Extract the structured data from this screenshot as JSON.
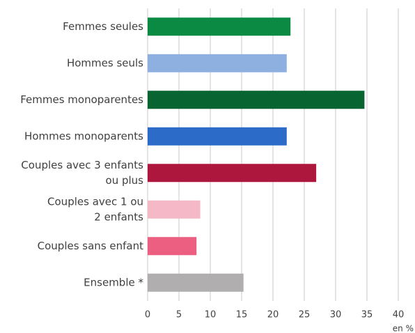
{
  "chart_data": {
    "type": "bar",
    "orientation": "horizontal",
    "categories": [
      [
        "Femmes seules"
      ],
      [
        "Hommes seuls"
      ],
      [
        "Femmes monoparentes"
      ],
      [
        "Hommes monoparents"
      ],
      [
        "Couples avec 3 enfants",
        "ou plus"
      ],
      [
        "Couples avec 1 ou",
        "2 enfants"
      ],
      [
        "Couples sans enfant"
      ],
      [
        "Ensemble *"
      ]
    ],
    "values": [
      22.8,
      22.2,
      34.6,
      22.2,
      26.9,
      8.4,
      7.8,
      15.3
    ],
    "colors": [
      "#0a8a43",
      "#8eb0e0",
      "#086431",
      "#2c6bc8",
      "#ae173d",
      "#f4b8c6",
      "#ec5f80",
      "#b0aeae"
    ],
    "xlim": [
      0,
      40
    ],
    "xticks": [
      0,
      5,
      10,
      15,
      20,
      25,
      30,
      35,
      40
    ],
    "grid": true,
    "xlabel": "en %"
  }
}
